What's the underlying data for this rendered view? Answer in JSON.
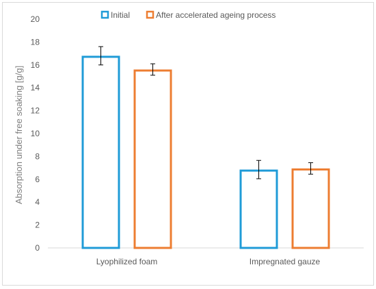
{
  "chart_data": {
    "type": "bar",
    "categories": [
      "Lyophilized foam",
      "Impregnated gauze"
    ],
    "series": [
      {
        "name": "Initial",
        "values": [
          16.8,
          6.85
        ],
        "errors": [
          0.8,
          0.8
        ],
        "color": "#1f9bd7"
      },
      {
        "name": "After accelerated ageing process",
        "values": [
          15.6,
          6.95
        ],
        "errors": [
          0.5,
          0.5
        ],
        "color": "#ed7d31"
      }
    ],
    "ylabel": "Absorption under free soaking [g/g]",
    "xlabel": "",
    "ylim": [
      0,
      20
    ],
    "yticks": [
      0,
      2,
      4,
      6,
      8,
      10,
      12,
      14,
      16,
      18,
      20
    ],
    "grid": false,
    "legend_position": "top-center",
    "bar_style": "hollow",
    "error_bar_color": "#000000",
    "border_color": "#d9d9d9"
  }
}
